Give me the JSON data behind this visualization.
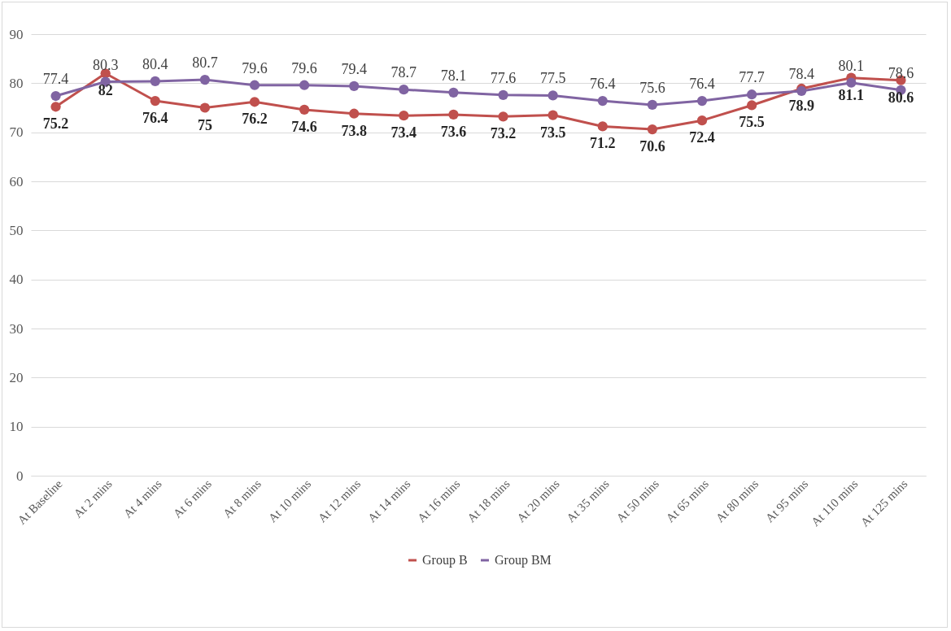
{
  "chart_data": {
    "type": "line",
    "categories": [
      "At Baseline",
      "At 2 mins",
      "At 4 mins",
      "At 6 mins",
      "At 8 mins",
      "At 10 mins",
      "At 12 mins",
      "At 14 mins",
      "At 16 mins",
      "At 18 mins",
      "At 20 mins",
      "At 35 mins",
      "At 50 mins",
      "At 65 mins",
      "At 80 mins",
      "At 95 mins",
      "At 110 mins",
      "At 125 mins"
    ],
    "series": [
      {
        "name": "Group B",
        "color": "#c0504d",
        "values": [
          75.2,
          82,
          76.4,
          75,
          76.2,
          74.6,
          73.8,
          73.4,
          73.6,
          73.2,
          73.5,
          71.2,
          70.6,
          72.4,
          75.5,
          78.9,
          81.1,
          80.6
        ]
      },
      {
        "name": "Group BM",
        "color": "#8064a2",
        "values": [
          77.4,
          80.3,
          80.4,
          80.7,
          79.6,
          79.6,
          79.4,
          78.7,
          78.1,
          77.6,
          77.5,
          76.4,
          75.6,
          76.4,
          77.7,
          78.4,
          80.1,
          78.6
        ]
      }
    ],
    "ylim": [
      0,
      90
    ],
    "yticks": [
      0,
      10,
      20,
      30,
      40,
      50,
      60,
      70,
      80,
      90
    ],
    "grid": "y",
    "legend": "bottom",
    "marker": "circle",
    "line_style": "solid",
    "data_labels": true
  }
}
